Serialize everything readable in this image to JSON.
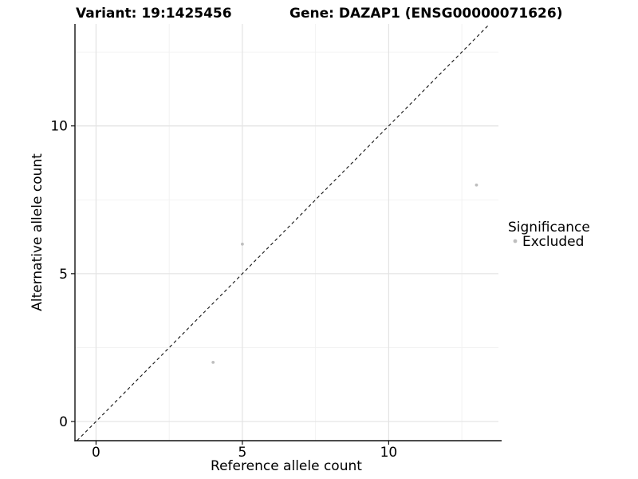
{
  "header": {
    "variant_title": "Variant: 19:1425456",
    "gene_title": "Gene: DAZAP1 (ENSG00000071626)"
  },
  "legend": {
    "title": "Significance",
    "items": [
      {
        "label": "Excluded",
        "marker": "circle-icon",
        "color": "#bebebe"
      }
    ]
  },
  "chart_data": {
    "type": "scatter",
    "title": "Variant: 19:1425456   Gene: DAZAP1 (ENSG00000071626)",
    "xlabel": "Reference allele count",
    "ylabel": "Alternative allele count",
    "x_ticks": [
      0,
      5,
      10
    ],
    "y_ticks": [
      0,
      5,
      10
    ],
    "x_minor_ticks": [
      2.5,
      7.5,
      12.5
    ],
    "y_minor_ticks": [
      2.5,
      7.5,
      12.5
    ],
    "xlim": [
      -0.72,
      13.75
    ],
    "ylim": [
      -0.65,
      13.45
    ],
    "grid": "major+minor",
    "legend_position": "right",
    "series": [
      {
        "name": "Excluded",
        "color": "#bebebe",
        "points": [
          {
            "x": 4,
            "y": 2
          },
          {
            "x": 5,
            "y": 6
          },
          {
            "x": 13,
            "y": 8
          }
        ]
      }
    ],
    "reference_line": {
      "equation": "y = x",
      "style": "dashed",
      "color": "#111111"
    },
    "colors": {
      "grid_major": "#e3e3e3",
      "grid_minor": "#f1f1f1",
      "axis": "#111111",
      "background": "#ffffff"
    }
  }
}
